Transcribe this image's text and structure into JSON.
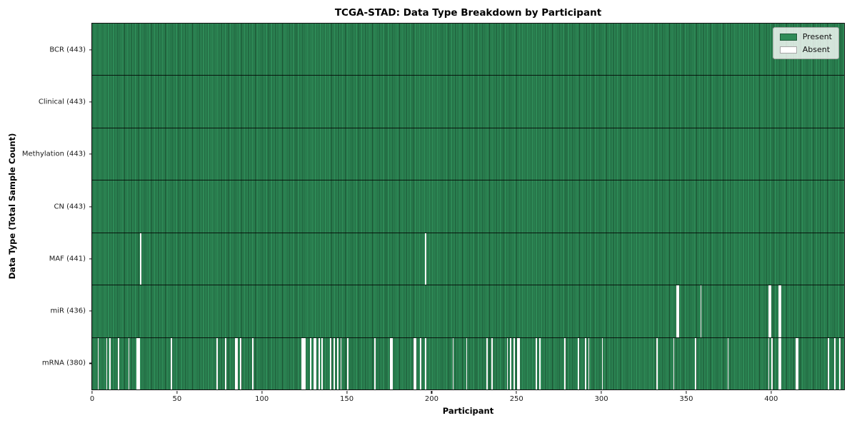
{
  "chart_data": {
    "type": "heatmap",
    "title": "TCGA-STAD: Data Type Breakdown by Participant",
    "xlabel": "Participant",
    "ylabel": "Data Type (Total Sample Count)",
    "n_participants": 443,
    "x_range": [
      0,
      443
    ],
    "x_ticks": [
      0,
      50,
      100,
      150,
      200,
      250,
      300,
      350,
      400
    ],
    "grid": false,
    "legend_position": "upper right",
    "legend": [
      {
        "label": "Present",
        "color": "#2e8b57"
      },
      {
        "label": "Absent",
        "color": "#ffffff"
      }
    ],
    "colors": {
      "present": "#2e8b57",
      "absent": "#ffffff",
      "cell_edge": "#17482c",
      "row_divider": "#1a1a1a"
    },
    "rows": [
      {
        "name": "BCR",
        "label": "BCR (443)",
        "present_count": 443,
        "absent": []
      },
      {
        "name": "Clinical",
        "label": "Clinical (443)",
        "present_count": 443,
        "absent": []
      },
      {
        "name": "Methylation",
        "label": "Methylation (443)",
        "present_count": 443,
        "absent": []
      },
      {
        "name": "CN",
        "label": "CN (443)",
        "present_count": 443,
        "absent": []
      },
      {
        "name": "MAF",
        "label": "MAF (441)",
        "present_count": 441,
        "absent": [
          28,
          196
        ]
      },
      {
        "name": "miR",
        "label": "miR (436)",
        "present_count": 436,
        "absent": [
          344,
          345,
          358,
          398,
          399,
          404,
          405
        ]
      },
      {
        "name": "mRNA",
        "label": "mRNA (380)",
        "present_count": 380,
        "absent": [
          3,
          8,
          10,
          15,
          21,
          26,
          27,
          46,
          73,
          78,
          84,
          85,
          87,
          94,
          123,
          124,
          125,
          128,
          130,
          131,
          133,
          135,
          140,
          142,
          144,
          146,
          150,
          166,
          175,
          176,
          189,
          190,
          193,
          196,
          212,
          220,
          232,
          235,
          244,
          246,
          248,
          250,
          251,
          261,
          263,
          278,
          286,
          290,
          292,
          300,
          332,
          342,
          355,
          374,
          398,
          400,
          404,
          405,
          414,
          415,
          433,
          437,
          440
        ]
      }
    ]
  }
}
